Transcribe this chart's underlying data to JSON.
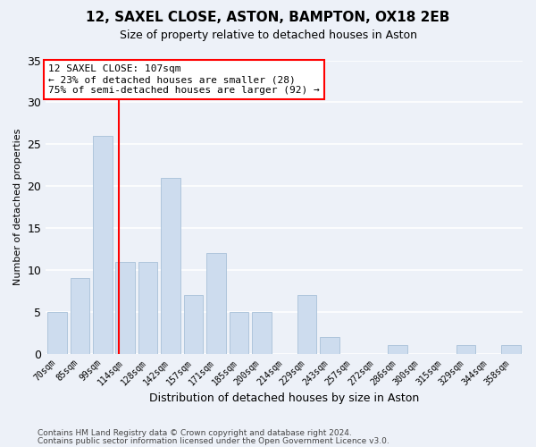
{
  "title1": "12, SAXEL CLOSE, ASTON, BAMPTON, OX18 2EB",
  "title2": "Size of property relative to detached houses in Aston",
  "xlabel": "Distribution of detached houses by size in Aston",
  "ylabel": "Number of detached properties",
  "categories": [
    "70sqm",
    "85sqm",
    "99sqm",
    "114sqm",
    "128sqm",
    "142sqm",
    "157sqm",
    "171sqm",
    "185sqm",
    "200sqm",
    "214sqm",
    "229sqm",
    "243sqm",
    "257sqm",
    "272sqm",
    "286sqm",
    "300sqm",
    "315sqm",
    "329sqm",
    "344sqm",
    "358sqm"
  ],
  "values": [
    5,
    9,
    26,
    11,
    11,
    21,
    7,
    12,
    5,
    5,
    0,
    7,
    2,
    0,
    0,
    1,
    0,
    0,
    1,
    0,
    1
  ],
  "bar_color": "#cddcee",
  "bar_edge_color": "#a8c0d8",
  "vline_x": 2.72,
  "vline_color": "red",
  "annotation_text": "12 SAXEL CLOSE: 107sqm\n← 23% of detached houses are smaller (28)\n75% of semi-detached houses are larger (92) →",
  "annotation_box_facecolor": "white",
  "annotation_box_edgecolor": "red",
  "ylim": [
    0,
    35
  ],
  "yticks": [
    0,
    5,
    10,
    15,
    20,
    25,
    30,
    35
  ],
  "bg_color": "#edf1f8",
  "grid_color": "white",
  "footer1": "Contains HM Land Registry data © Crown copyright and database right 2024.",
  "footer2": "Contains public sector information licensed under the Open Government Licence v3.0.",
  "title1_fontsize": 11,
  "title2_fontsize": 9,
  "ylabel_fontsize": 8,
  "xlabel_fontsize": 9,
  "tick_fontsize": 7,
  "annotation_fontsize": 8,
  "footer_fontsize": 6.5
}
